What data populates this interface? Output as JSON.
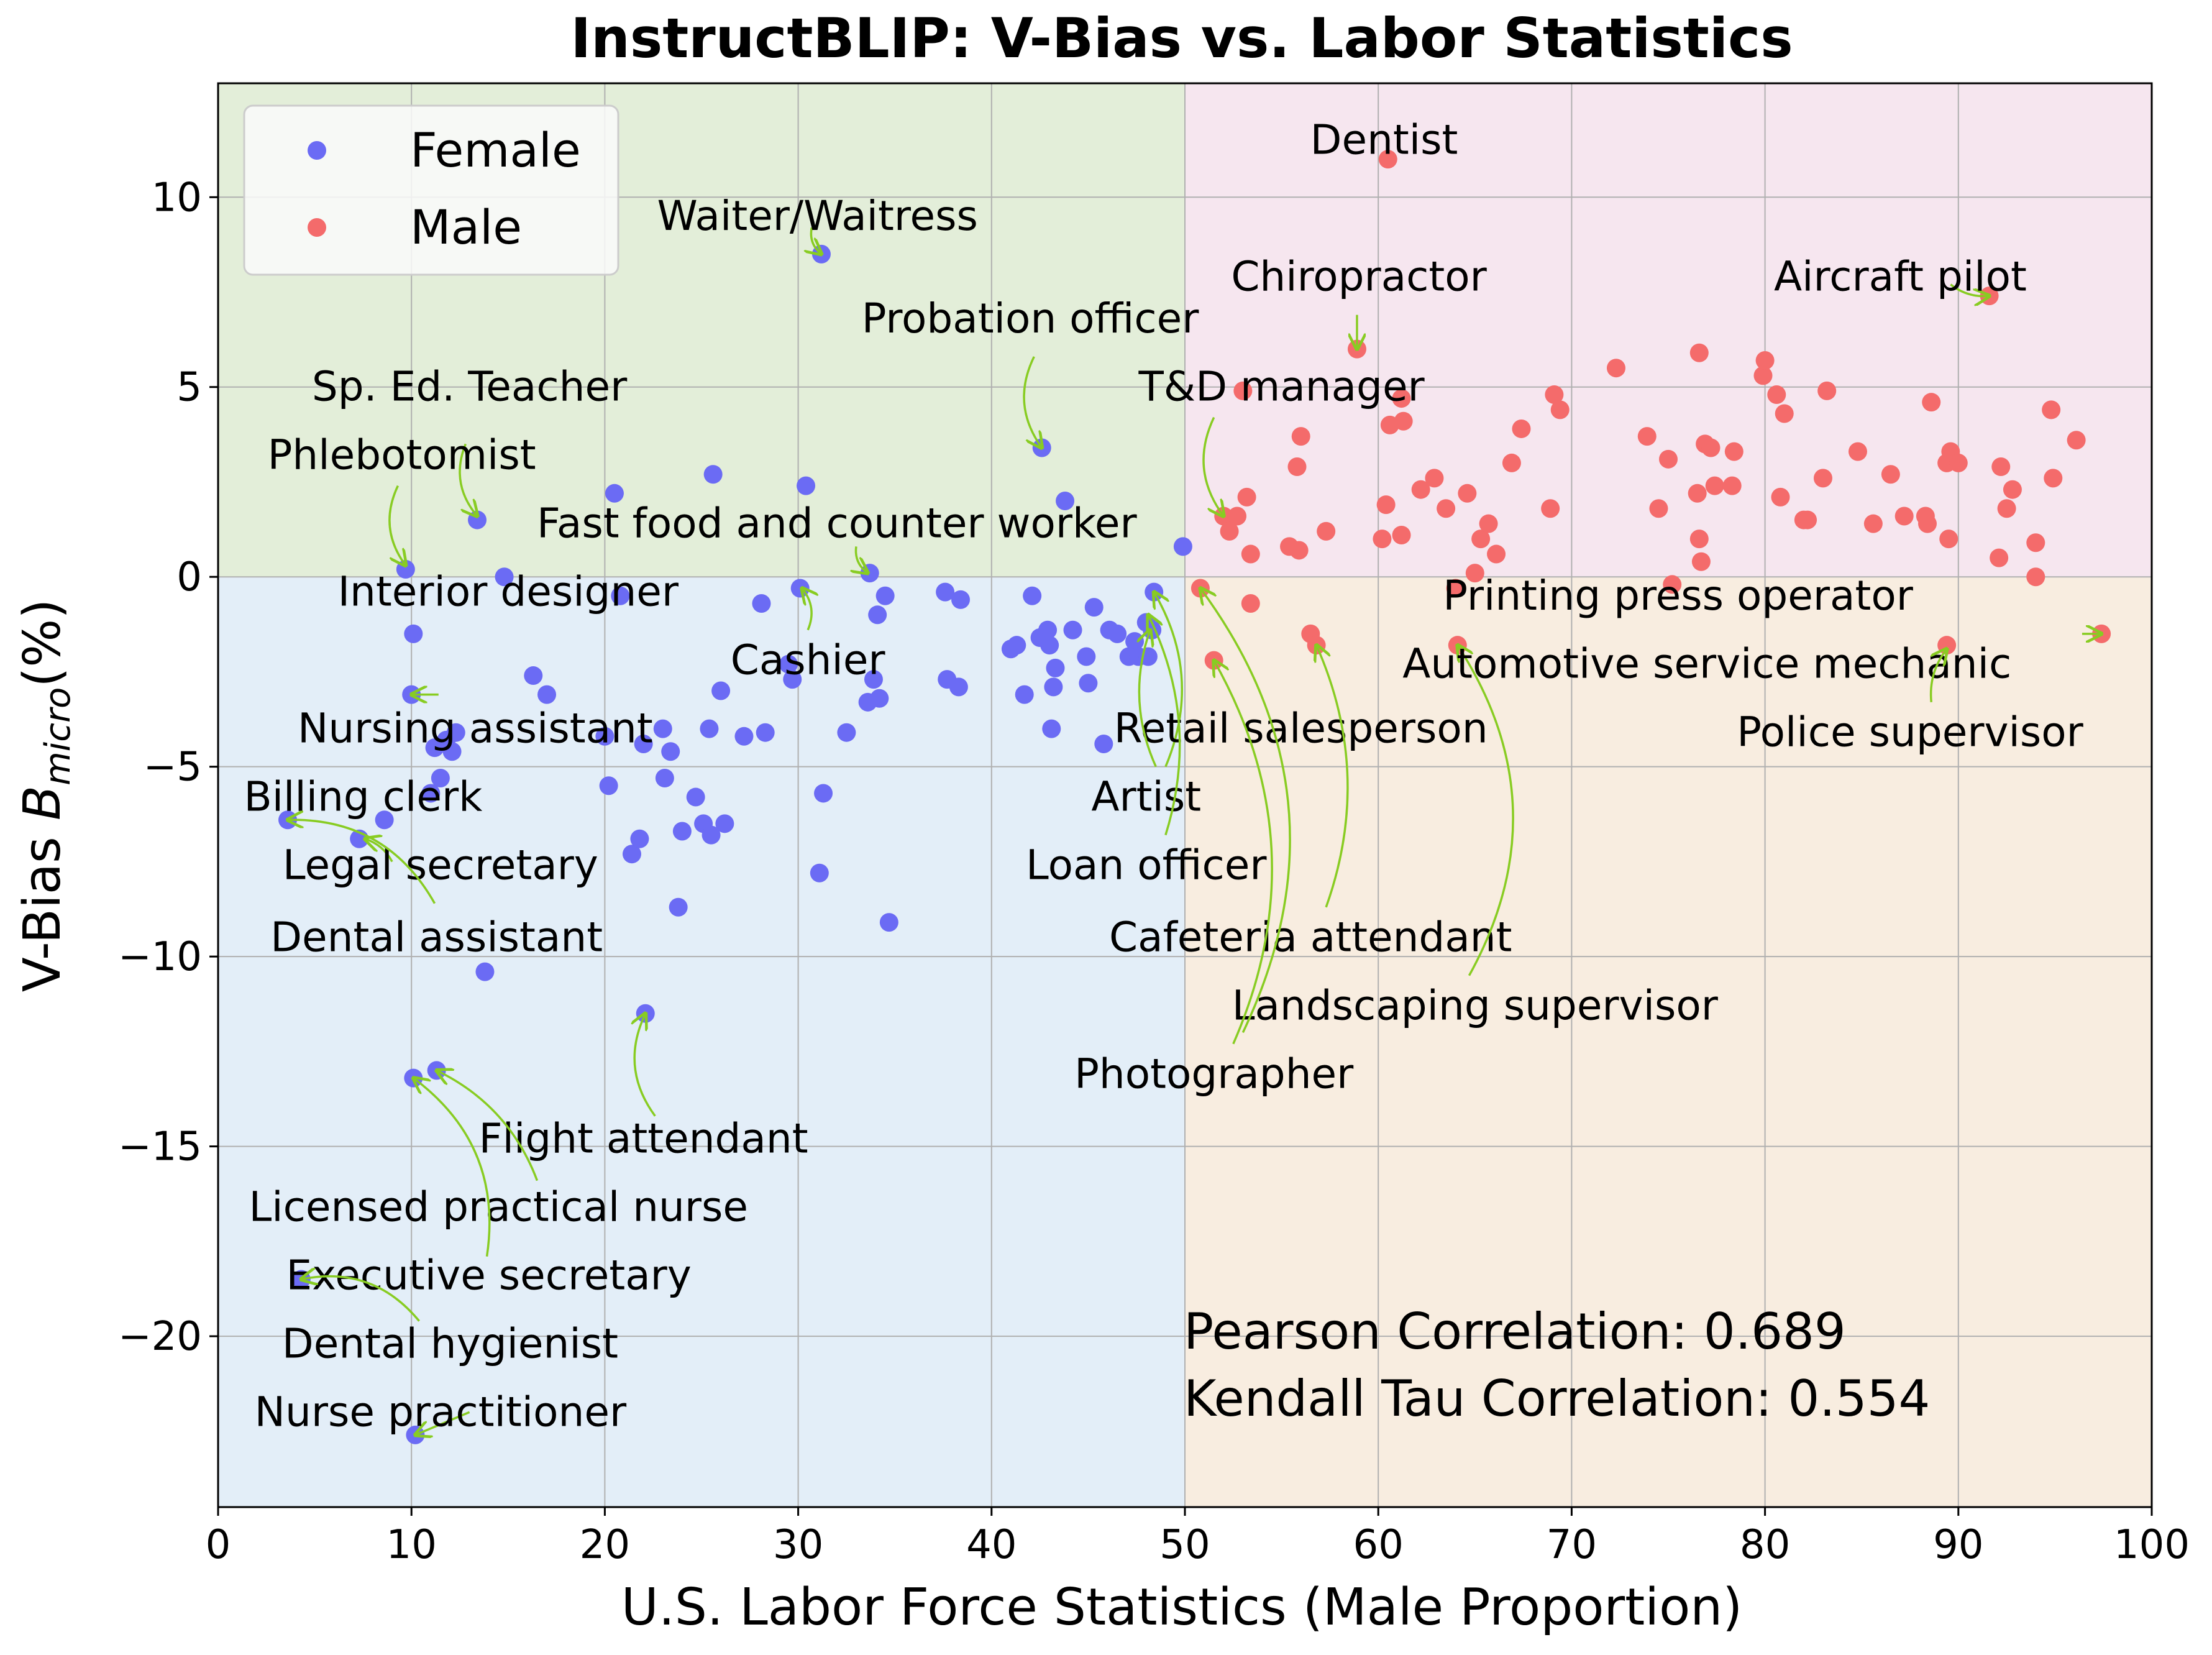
{
  "chart_data": {
    "type": "scatter",
    "title": "InstructBLIP: V-Bias vs. Labor Statistics",
    "xlabel": "U.S. Labor Force Statistics (Male Proportion)",
    "ylabel_main": "V-Bias  ",
    "ylabel_b": "B",
    "ylabel_sub": "micro",
    "ylabel_tail": "(%)",
    "xlim": [
      0,
      100
    ],
    "ylim": [
      -24.5,
      13
    ],
    "xticks": [
      0,
      10,
      20,
      30,
      40,
      50,
      60,
      70,
      80,
      90,
      100
    ],
    "yticks": [
      10,
      5,
      0,
      -5,
      -10,
      -15,
      -20
    ],
    "ytick_labels": [
      "10",
      "5",
      "0",
      "−5",
      "−10",
      "−15",
      "−20"
    ],
    "grid": true,
    "legend_position": "top-left",
    "regions": [
      {
        "x": [
          0,
          50
        ],
        "y": [
          0,
          13
        ],
        "color": "#e3eed9"
      },
      {
        "x": [
          50,
          100
        ],
        "y": [
          0,
          13
        ],
        "color": "#f6e6ef"
      },
      {
        "x": [
          0,
          50
        ],
        "y": [
          -24.5,
          0
        ],
        "color": "#e3eef8"
      },
      {
        "x": [
          50,
          100
        ],
        "y": [
          -24.5,
          0
        ],
        "color": "#f8ede0"
      }
    ],
    "series": [
      {
        "name": "Female",
        "color": "#6b6bf4",
        "points": [
          [
            9.7,
            0.2
          ],
          [
            10.1,
            -1.5
          ],
          [
            10.0,
            -3.1
          ],
          [
            11.2,
            -4.5
          ],
          [
            11.8,
            -4.3
          ],
          [
            12.1,
            -4.6
          ],
          [
            11.5,
            -5.3
          ],
          [
            12.3,
            -4.1
          ],
          [
            11.0,
            -5.7
          ],
          [
            8.6,
            -6.4
          ],
          [
            3.6,
            -6.4
          ],
          [
            7.3,
            -6.9
          ],
          [
            13.4,
            1.5
          ],
          [
            14.8,
            0.0
          ],
          [
            16.3,
            -2.6
          ],
          [
            17.0,
            -3.1
          ],
          [
            13.8,
            -10.4
          ],
          [
            10.1,
            -13.2
          ],
          [
            11.3,
            -13.0
          ],
          [
            4.3,
            -18.5
          ],
          [
            10.2,
            -22.6
          ],
          [
            20.5,
            2.2
          ],
          [
            20.8,
            -0.5
          ],
          [
            20.0,
            -4.2
          ],
          [
            20.2,
            -5.5
          ],
          [
            21.4,
            -7.3
          ],
          [
            21.8,
            -6.9
          ],
          [
            22.0,
            -4.4
          ],
          [
            22.1,
            -11.5
          ],
          [
            23.0,
            -4.0
          ],
          [
            23.4,
            -4.6
          ],
          [
            23.1,
            -5.3
          ],
          [
            23.8,
            -8.7
          ],
          [
            24.0,
            -6.7
          ],
          [
            24.7,
            -5.8
          ],
          [
            25.1,
            -6.5
          ],
          [
            25.4,
            -4.0
          ],
          [
            25.5,
            -6.8
          ],
          [
            26.0,
            -3.0
          ],
          [
            26.2,
            -6.5
          ],
          [
            25.6,
            2.7
          ],
          [
            27.2,
            -4.2
          ],
          [
            28.1,
            -0.7
          ],
          [
            28.3,
            -4.1
          ],
          [
            29.5,
            -2.3
          ],
          [
            29.7,
            -2.7
          ],
          [
            30.1,
            -0.3
          ],
          [
            30.4,
            2.4
          ],
          [
            31.2,
            8.5
          ],
          [
            31.1,
            -7.8
          ],
          [
            31.3,
            -5.7
          ],
          [
            32.5,
            -4.1
          ],
          [
            33.6,
            -3.3
          ],
          [
            33.7,
            0.1
          ],
          [
            33.9,
            -2.7
          ],
          [
            34.1,
            -1.0
          ],
          [
            34.2,
            -3.2
          ],
          [
            34.5,
            -0.5
          ],
          [
            34.7,
            -9.1
          ],
          [
            37.6,
            -0.4
          ],
          [
            37.7,
            -2.7
          ],
          [
            38.3,
            -2.9
          ],
          [
            38.4,
            -0.6
          ],
          [
            41.0,
            -1.9
          ],
          [
            41.3,
            -1.8
          ],
          [
            41.7,
            -3.1
          ],
          [
            42.1,
            -0.5
          ],
          [
            42.5,
            -1.6
          ],
          [
            42.6,
            3.4
          ],
          [
            42.9,
            -1.4
          ],
          [
            43.0,
            -1.8
          ],
          [
            43.1,
            -4.0
          ],
          [
            43.2,
            -2.9
          ],
          [
            43.3,
            -2.4
          ],
          [
            43.8,
            2.0
          ],
          [
            44.2,
            -1.4
          ],
          [
            44.9,
            -2.1
          ],
          [
            45.0,
            -2.8
          ],
          [
            45.3,
            -0.8
          ],
          [
            45.8,
            -4.4
          ],
          [
            46.1,
            -1.4
          ],
          [
            46.5,
            -1.5
          ],
          [
            47.1,
            -2.1
          ],
          [
            47.4,
            -1.7
          ],
          [
            47.6,
            -2.1
          ],
          [
            48.0,
            -1.2
          ],
          [
            48.1,
            -2.1
          ],
          [
            48.3,
            -1.4
          ],
          [
            48.4,
            -0.4
          ],
          [
            49.9,
            0.8
          ]
        ]
      },
      {
        "name": "Male",
        "color": "#f46b6b",
        "points": [
          [
            50.8,
            -0.3
          ],
          [
            51.5,
            -2.2
          ],
          [
            52.0,
            1.6
          ],
          [
            52.3,
            1.2
          ],
          [
            52.7,
            1.6
          ],
          [
            53.0,
            4.9
          ],
          [
            53.2,
            2.1
          ],
          [
            53.4,
            0.6
          ],
          [
            53.4,
            -0.7
          ],
          [
            55.4,
            0.8
          ],
          [
            55.9,
            0.7
          ],
          [
            55.8,
            2.9
          ],
          [
            56.0,
            3.7
          ],
          [
            56.5,
            -1.5
          ],
          [
            56.8,
            -1.8
          ],
          [
            57.3,
            1.2
          ],
          [
            58.9,
            6.0
          ],
          [
            60.2,
            1.0
          ],
          [
            60.4,
            1.9
          ],
          [
            60.5,
            11.0
          ],
          [
            60.6,
            4.0
          ],
          [
            61.2,
            1.1
          ],
          [
            61.2,
            4.7
          ],
          [
            61.3,
            4.1
          ],
          [
            62.2,
            2.3
          ],
          [
            62.9,
            2.6
          ],
          [
            63.5,
            1.8
          ],
          [
            64.0,
            -0.3
          ],
          [
            64.1,
            -1.8
          ],
          [
            64.6,
            2.2
          ],
          [
            65.0,
            0.1
          ],
          [
            65.3,
            1.0
          ],
          [
            65.7,
            1.4
          ],
          [
            66.1,
            0.6
          ],
          [
            66.9,
            3.0
          ],
          [
            67.4,
            3.9
          ],
          [
            68.9,
            1.8
          ],
          [
            69.1,
            4.8
          ],
          [
            69.4,
            4.4
          ],
          [
            72.3,
            5.5
          ],
          [
            73.9,
            3.7
          ],
          [
            74.5,
            1.8
          ],
          [
            75.0,
            3.1
          ],
          [
            75.2,
            -0.2
          ],
          [
            76.5,
            2.2
          ],
          [
            76.6,
            5.9
          ],
          [
            76.6,
            1.0
          ],
          [
            76.7,
            0.4
          ],
          [
            76.9,
            3.5
          ],
          [
            77.2,
            3.4
          ],
          [
            77.4,
            2.4
          ],
          [
            78.3,
            2.4
          ],
          [
            78.4,
            3.3
          ],
          [
            79.9,
            5.3
          ],
          [
            80.0,
            5.7
          ],
          [
            80.6,
            4.8
          ],
          [
            80.8,
            2.1
          ],
          [
            81.0,
            4.3
          ],
          [
            82.0,
            1.5
          ],
          [
            82.2,
            1.5
          ],
          [
            83.0,
            2.6
          ],
          [
            83.2,
            4.9
          ],
          [
            84.8,
            3.3
          ],
          [
            85.6,
            1.4
          ],
          [
            86.5,
            2.7
          ],
          [
            87.2,
            1.6
          ],
          [
            88.3,
            1.6
          ],
          [
            88.4,
            1.4
          ],
          [
            88.6,
            4.6
          ],
          [
            89.4,
            3.0
          ],
          [
            89.4,
            -1.8
          ],
          [
            89.5,
            1.0
          ],
          [
            89.6,
            3.3
          ],
          [
            90.0,
            3.0
          ],
          [
            91.6,
            7.4
          ],
          [
            92.1,
            0.5
          ],
          [
            92.2,
            2.9
          ],
          [
            92.5,
            1.8
          ],
          [
            92.8,
            2.3
          ],
          [
            94.0,
            0.0
          ],
          [
            94.0,
            0.9
          ],
          [
            94.8,
            4.4
          ],
          [
            94.9,
            2.6
          ],
          [
            96.1,
            3.6
          ],
          [
            97.4,
            -1.5
          ]
        ]
      }
    ],
    "annotations": [
      {
        "text": "Waiter/Waitress",
        "tx": 31.0,
        "ty": 9.5,
        "ax": 31.2,
        "ay": 8.5,
        "sx": 30.7,
        "sy": 9.2,
        "rad": 0.3,
        "tail": true
      },
      {
        "text": "Probation officer",
        "tx": 42.0,
        "ty": 6.8,
        "ax": 42.6,
        "ay": 3.4,
        "sx": 42.2,
        "sy": 5.8,
        "rad": 0.3,
        "tail": true
      },
      {
        "text": "Sp. Ed. Teacher",
        "tx": 13.0,
        "ty": 5.0,
        "ax": 13.4,
        "ay": 1.6,
        "sx": 12.8,
        "sy": 3.5,
        "rad": 0.3,
        "tail": true
      },
      {
        "text": "Phlebotomist",
        "tx": 9.5,
        "ty": 3.2,
        "ax": 9.7,
        "ay": 0.3,
        "sx": 9.3,
        "sy": 2.4,
        "rad": 0.3,
        "tail": true
      },
      {
        "text": "Fast food and counter worker",
        "tx": 32.0,
        "ty": 1.4,
        "ax": 33.6,
        "ay": 0.1,
        "sx": 33.0,
        "sy": 0.8,
        "rad": 0.3,
        "tail": true
      },
      {
        "text": "Interior designer",
        "tx": 15.0,
        "ty": -0.4,
        "ax": 14.8,
        "ay": 0.0,
        "sx": 15.0,
        "sy": -0.3,
        "rad": 0.0,
        "tail": false
      },
      {
        "text": "Cashier",
        "tx": 30.5,
        "ty": -2.2,
        "ax": 30.2,
        "ay": -0.3,
        "sx": 30.5,
        "sy": -1.4,
        "rad": 0.3,
        "tail": true
      },
      {
        "text": "Nursing assistant",
        "tx": 13.3,
        "ty": -4.0,
        "ax": 10.0,
        "ay": -3.1,
        "sx": 11.4,
        "sy": -3.1,
        "rad": 0.0,
        "tail": true
      },
      {
        "text": "Billing clerk",
        "tx": 7.5,
        "ty": -5.8,
        "ax": 8.6,
        "ay": -6.4,
        "sx": 7.5,
        "sy": -6.2,
        "rad": 0.0,
        "tail": false
      },
      {
        "text": "Legal secretary",
        "tx": 11.5,
        "ty": -7.6,
        "ax": 7.6,
        "ay": -6.9,
        "sx": 9.0,
        "sy": -7.5,
        "rad": 0.2,
        "tail": true
      },
      {
        "text": "Dental assistant",
        "tx": 11.3,
        "ty": -9.5,
        "ax": 3.6,
        "ay": -6.4,
        "sx": 11.2,
        "sy": -8.6,
        "rad": 0.3,
        "tail": true
      },
      {
        "text": "Flight attendant",
        "tx": 22.0,
        "ty": -14.8,
        "ax": 22.1,
        "ay": -11.5,
        "sx": 22.6,
        "sy": -14.2,
        "rad": -0.3,
        "tail": true
      },
      {
        "text": "Licensed practical nurse",
        "tx": 14.5,
        "ty": -16.6,
        "ax": 11.3,
        "ay": -13.0,
        "sx": 16.5,
        "sy": -15.9,
        "rad": 0.2,
        "tail": true
      },
      {
        "text": "Executive secretary",
        "tx": 14.0,
        "ty": -18.4,
        "ax": 10.1,
        "ay": -13.2,
        "sx": 13.9,
        "sy": -17.9,
        "rad": 0.3,
        "tail": true
      },
      {
        "text": "Dental hygienist",
        "tx": 12.0,
        "ty": -20.2,
        "ax": 4.3,
        "ay": -18.5,
        "sx": 10.4,
        "sy": -19.6,
        "rad": 0.3,
        "tail": true
      },
      {
        "text": "Nurse practitioner",
        "tx": 11.5,
        "ty": -22.0,
        "ax": 10.2,
        "ay": -22.6,
        "sx": 13.0,
        "sy": -22.0,
        "rad": 0.0,
        "tail": true
      },
      {
        "text": "Dentist",
        "tx": 60.3,
        "ty": 11.5,
        "ax": 60.5,
        "ay": 11.0,
        "sx": 60.3,
        "sy": 11.7,
        "rad": 0.0,
        "tail": false
      },
      {
        "text": "Chiropractor",
        "tx": 59.0,
        "ty": 7.9,
        "ax": 58.9,
        "ay": 6.0,
        "sx": 58.9,
        "sy": 6.9,
        "rad": 0.0,
        "tail": true
      },
      {
        "text": "Aircraft pilot",
        "tx": 87.0,
        "ty": 7.9,
        "ax": 91.6,
        "ay": 7.4,
        "sx": 89.6,
        "sy": 7.7,
        "rad": 0.2,
        "tail": true
      },
      {
        "text": "T&D manager",
        "tx": 55.0,
        "ty": 5.0,
        "ax": 52.0,
        "ay": 1.6,
        "sx": 51.5,
        "sy": 4.2,
        "rad": 0.3,
        "tail": true
      },
      {
        "text": "Retail salesperson",
        "tx": 56.0,
        "ty": -4.0,
        "ax": 48.4,
        "ay": -0.4,
        "sx": 49.0,
        "sy": -5.0,
        "rad": 0.25,
        "tail": true
      },
      {
        "text": "Artist",
        "tx": 48.0,
        "ty": -5.8,
        "ax": 48.2,
        "ay": -1.4,
        "sx": 48.5,
        "sy": -5.0,
        "rad": -0.2,
        "tail": true
      },
      {
        "text": "Loan officer",
        "tx": 48.0,
        "ty": -7.6,
        "ax": 48.1,
        "ay": -1.0,
        "sx": 49.0,
        "sy": -6.8,
        "rad": 0.2,
        "tail": true
      },
      {
        "text": "Cafeteria attendant",
        "tx": 56.5,
        "ty": -9.5,
        "ax": 56.8,
        "ay": -1.8,
        "sx": 57.3,
        "sy": -8.7,
        "rad": 0.2,
        "tail": true
      },
      {
        "text": "Landscaping supervisor",
        "tx": 65.0,
        "ty": -11.3,
        "ax": 64.1,
        "ay": -1.8,
        "sx": 64.7,
        "sy": -10.5,
        "rad": 0.3,
        "tail": true
      },
      {
        "text": "Photographer",
        "tx": 51.5,
        "ty": -13.1,
        "ax": 51.5,
        "ay": -2.2,
        "sx": 52.5,
        "sy": -12.3,
        "rad": 0.25,
        "tail": true
      },
      {
        "text": "Photographer-2",
        "label": "",
        "tx": 51.5,
        "ty": -13.1,
        "ax": 50.8,
        "ay": -0.3,
        "sx": 53.0,
        "sy": -12.0,
        "rad": 0.3,
        "tail": true
      },
      {
        "text": "Printing press operator",
        "tx": 75.5,
        "ty": -0.5,
        "ax": 75.2,
        "ay": -0.2,
        "sx": 75.2,
        "sy": -0.6,
        "rad": 0.0,
        "tail": false
      },
      {
        "text": "Automotive service mechanic",
        "tx": 77.0,
        "ty": -2.3,
        "ax": 89.4,
        "ay": -1.8,
        "sx": 88.8,
        "sy": -2.1,
        "rad": 0.0,
        "tail": false
      },
      {
        "text": "Police supervisor",
        "tx": 87.5,
        "ty": -4.1,
        "ax": 89.4,
        "ay": -1.9,
        "sx": 88.6,
        "sy": -3.3,
        "rad": -0.2,
        "tail": true
      },
      {
        "text": "Police-pointer",
        "label": "",
        "tx": 0,
        "ty": 0,
        "ax": 97.4,
        "ay": -1.5,
        "sx": 96.4,
        "sy": -1.5,
        "rad": 0.0,
        "tail": true
      }
    ],
    "correlation_text": [
      "Pearson Correlation: 0.689",
      "Kendall Tau Correlation: 0.554"
    ],
    "annotation_arrow_color": "#88cc22"
  }
}
